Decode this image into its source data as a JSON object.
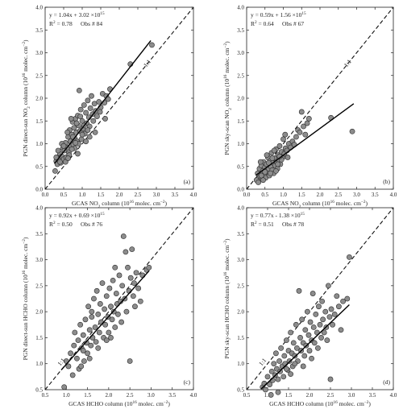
{
  "chart_data": [
    {
      "type": "scatter",
      "panel_label": "(a)",
      "xlabel": "GCAS NO₂ column (10¹⁶ molec. cm⁻²)",
      "ylabel": "PGN direct-sun NO₂ column (10¹⁶ molec. cm⁻²)",
      "xlim": [
        0.0,
        4.0
      ],
      "ylim": [
        0.0,
        4.0
      ],
      "xticks": [
        0.0,
        0.5,
        1.0,
        1.5,
        2.0,
        2.5,
        3.0,
        3.5,
        4.0
      ],
      "yticks": [
        0.0,
        0.5,
        1.0,
        1.5,
        2.0,
        2.5,
        3.0,
        3.5,
        4.0
      ],
      "tick_format": "0.0",
      "equation": "y = 1.04x + 3.02 ×10¹⁵",
      "r2_text": "R² = 0.78",
      "obs_text": "Obs # 84",
      "fit": {
        "slope": 1.04,
        "intercept": 0.302,
        "x_range": [
          0.25,
          2.85
        ]
      },
      "one_to_one": {
        "label": "1:1",
        "x_range": [
          0.0,
          4.0
        ]
      },
      "points": [
        [
          0.27,
          0.4
        ],
        [
          0.3,
          0.62
        ],
        [
          0.33,
          0.55
        ],
        [
          0.35,
          0.7
        ],
        [
          0.38,
          0.64
        ],
        [
          0.4,
          0.78
        ],
        [
          0.42,
          0.58
        ],
        [
          0.45,
          0.72
        ],
        [
          0.48,
          0.9
        ],
        [
          0.5,
          0.66
        ],
        [
          0.52,
          0.85
        ],
        [
          0.55,
          1.02
        ],
        [
          0.57,
          0.7
        ],
        [
          0.6,
          0.92
        ],
        [
          0.62,
          1.15
        ],
        [
          0.64,
          0.8
        ],
        [
          0.66,
          1.3
        ],
        [
          0.68,
          1.05
        ],
        [
          0.7,
          0.95
        ],
        [
          0.72,
          1.2
        ],
        [
          0.74,
          1.48
        ],
        [
          0.76,
          0.98
        ],
        [
          0.78,
          1.35
        ],
        [
          0.8,
          1.12
        ],
        [
          0.82,
          1.55
        ],
        [
          0.84,
          1.25
        ],
        [
          0.86,
          1.05
        ],
        [
          0.88,
          1.62
        ],
        [
          0.9,
          1.4
        ],
        [
          0.92,
          2.17
        ],
        [
          0.94,
          1.28
        ],
        [
          0.96,
          1.75
        ],
        [
          0.98,
          1.1
        ],
        [
          1.0,
          1.5
        ],
        [
          1.02,
          1.33
        ],
        [
          1.05,
          1.85
        ],
        [
          1.07,
          1.22
        ],
        [
          1.1,
          1.68
        ],
        [
          1.12,
          1.45
        ],
        [
          1.15,
          1.95
        ],
        [
          1.18,
          1.58
        ],
        [
          1.2,
          1.38
        ],
        [
          1.22,
          1.78
        ],
        [
          1.25,
          2.05
        ],
        [
          1.28,
          1.65
        ],
        [
          1.3,
          1.5
        ],
        [
          1.33,
          1.88
        ],
        [
          1.36,
          1.72
        ],
        [
          1.4,
          1.6
        ],
        [
          1.45,
          1.92
        ],
        [
          1.5,
          1.8
        ],
        [
          1.55,
          2.1
        ],
        [
          1.6,
          1.9
        ],
        [
          1.65,
          2.05
        ],
        [
          1.7,
          1.98
        ],
        [
          1.75,
          2.2
        ],
        [
          0.35,
          0.85
        ],
        [
          0.45,
          1.0
        ],
        [
          0.55,
          0.6
        ],
        [
          0.6,
          1.25
        ],
        [
          0.65,
          0.75
        ],
        [
          0.7,
          1.55
        ],
        [
          0.75,
          1.15
        ],
        [
          0.8,
          0.9
        ],
        [
          0.85,
          1.45
        ],
        [
          0.9,
          1.0
        ],
        [
          0.95,
          1.6
        ],
        [
          1.0,
          1.2
        ],
        [
          1.05,
          1.4
        ],
        [
          1.1,
          1.05
        ],
        [
          1.15,
          1.3
        ],
        [
          1.2,
          1.15
        ],
        [
          0.5,
          0.95
        ],
        [
          0.4,
          0.6
        ],
        [
          0.3,
          0.7
        ],
        [
          0.62,
          0.68
        ],
        [
          0.72,
          0.88
        ],
        [
          0.82,
          1.02
        ],
        [
          1.35,
          1.25
        ],
        [
          1.48,
          1.7
        ],
        [
          1.62,
          1.55
        ],
        [
          2.3,
          2.75
        ],
        [
          2.88,
          3.17
        ],
        [
          0.88,
          0.78
        ]
      ]
    },
    {
      "type": "scatter",
      "panel_label": "(b)",
      "xlabel": "GCAS NO₂ column (10¹⁶ molec. cm⁻²)",
      "ylabel": "PGN sky-scan NO₂ column (10¹⁶ molec. cm⁻²)",
      "xlim": [
        0.0,
        4.0
      ],
      "ylim": [
        0.0,
        4.0
      ],
      "xticks": [
        0.0,
        0.5,
        1.0,
        1.5,
        2.0,
        2.5,
        3.0,
        3.5,
        4.0
      ],
      "yticks": [
        0.0,
        0.5,
        1.0,
        1.5,
        2.0,
        2.5,
        3.0,
        3.5,
        4.0
      ],
      "tick_format": "0.0",
      "equation": "y = 0.59x + 1.56 ×10¹⁵",
      "r2_text": "R² = 0.64",
      "obs_text": "Obs # 67",
      "fit": {
        "slope": 0.59,
        "intercept": 0.156,
        "x_range": [
          0.25,
          2.92
        ]
      },
      "one_to_one": {
        "label": "1:1",
        "x_range": [
          0.0,
          4.0
        ]
      },
      "points": [
        [
          0.27,
          0.2
        ],
        [
          0.3,
          0.35
        ],
        [
          0.32,
          0.15
        ],
        [
          0.35,
          0.45
        ],
        [
          0.37,
          0.28
        ],
        [
          0.4,
          0.52
        ],
        [
          0.42,
          0.22
        ],
        [
          0.44,
          0.4
        ],
        [
          0.46,
          0.6
        ],
        [
          0.48,
          0.32
        ],
        [
          0.5,
          0.48
        ],
        [
          0.52,
          0.25
        ],
        [
          0.54,
          0.55
        ],
        [
          0.56,
          0.38
        ],
        [
          0.58,
          0.7
        ],
        [
          0.6,
          0.45
        ],
        [
          0.62,
          0.3
        ],
        [
          0.64,
          0.62
        ],
        [
          0.66,
          0.5
        ],
        [
          0.68,
          0.8
        ],
        [
          0.7,
          0.42
        ],
        [
          0.72,
          0.58
        ],
        [
          0.74,
          0.35
        ],
        [
          0.76,
          0.68
        ],
        [
          0.78,
          0.52
        ],
        [
          0.8,
          0.88
        ],
        [
          0.82,
          0.6
        ],
        [
          0.84,
          0.45
        ],
        [
          0.86,
          0.75
        ],
        [
          0.88,
          0.65
        ],
        [
          0.9,
          0.95
        ],
        [
          0.92,
          0.55
        ],
        [
          0.95,
          0.82
        ],
        [
          0.98,
          0.7
        ],
        [
          1.0,
          1.1
        ],
        [
          1.03,
          0.78
        ],
        [
          1.06,
          0.9
        ],
        [
          1.1,
          0.85
        ],
        [
          1.15,
          1.0
        ],
        [
          1.2,
          0.92
        ],
        [
          1.25,
          1.05
        ],
        [
          1.3,
          0.98
        ],
        [
          1.35,
          1.15
        ],
        [
          1.4,
          1.3
        ],
        [
          1.45,
          1.25
        ],
        [
          1.5,
          1.7
        ],
        [
          1.55,
          1.38
        ],
        [
          1.6,
          1.2
        ],
        [
          1.65,
          1.45
        ],
        [
          1.7,
          1.55
        ],
        [
          0.38,
          0.6
        ],
        [
          0.45,
          0.2
        ],
        [
          0.55,
          0.75
        ],
        [
          0.65,
          0.35
        ],
        [
          0.75,
          0.85
        ],
        [
          0.85,
          0.55
        ],
        [
          0.95,
          0.65
        ],
        [
          1.05,
          1.2
        ],
        [
          0.5,
          0.38
        ],
        [
          0.6,
          0.58
        ],
        [
          0.7,
          0.68
        ],
        [
          0.8,
          0.4
        ],
        [
          0.9,
          0.72
        ],
        [
          1.12,
          0.7
        ],
        [
          2.3,
          1.57
        ],
        [
          2.88,
          1.27
        ],
        [
          0.4,
          0.3
        ]
      ]
    },
    {
      "type": "scatter",
      "panel_label": "(c)",
      "xlabel": "GCAS HCHO column (10¹⁶ molec. cm⁻²)",
      "ylabel": "PGN direct-sun HCHO column (10¹⁶ molec. cm⁻²)",
      "xlim": [
        0.5,
        4.0
      ],
      "ylim": [
        0.5,
        4.0
      ],
      "xticks": [
        0.5,
        1.0,
        1.5,
        2.0,
        2.5,
        3.0,
        3.5,
        4.0
      ],
      "yticks": [
        0.5,
        1.0,
        1.5,
        2.0,
        2.5,
        3.0,
        3.5,
        4.0
      ],
      "tick_format": "0.0",
      "equation": "y = 0.92x + 0.69 ×10¹⁵",
      "r2_text": "R² = 0.50",
      "obs_text": "Obs # 76",
      "fit": {
        "slope": 0.92,
        "intercept": 0.069,
        "x_range": [
          0.88,
          2.95
        ]
      },
      "one_to_one": {
        "label": "1:1",
        "x_range": [
          0.5,
          4.0
        ]
      },
      "points": [
        [
          0.95,
          0.55
        ],
        [
          1.0,
          1.05
        ],
        [
          1.05,
          0.95
        ],
        [
          1.1,
          1.2
        ],
        [
          1.15,
          0.78
        ],
        [
          1.18,
          1.35
        ],
        [
          1.2,
          1.6
        ],
        [
          1.25,
          1.1
        ],
        [
          1.28,
          1.45
        ],
        [
          1.3,
          0.9
        ],
        [
          1.33,
          1.75
        ],
        [
          1.36,
          1.3
        ],
        [
          1.4,
          1.55
        ],
        [
          1.42,
          1.05
        ],
        [
          1.45,
          1.85
        ],
        [
          1.48,
          1.4
        ],
        [
          1.5,
          1.2
        ],
        [
          1.52,
          2.1
        ],
        [
          1.55,
          1.65
        ],
        [
          1.58,
          1.35
        ],
        [
          1.6,
          1.9
        ],
        [
          1.62,
          1.5
        ],
        [
          1.65,
          2.25
        ],
        [
          1.68,
          1.7
        ],
        [
          1.7,
          1.42
        ],
        [
          1.72,
          2.4
        ],
        [
          1.75,
          1.95
        ],
        [
          1.78,
          1.6
        ],
        [
          1.8,
          2.15
        ],
        [
          1.82,
          1.8
        ],
        [
          1.85,
          2.55
        ],
        [
          1.88,
          1.5
        ],
        [
          1.9,
          2.05
        ],
        [
          1.92,
          1.75
        ],
        [
          1.95,
          2.3
        ],
        [
          1.98,
          1.9
        ],
        [
          2.0,
          1.6
        ],
        [
          2.02,
          2.45
        ],
        [
          2.05,
          2.1
        ],
        [
          2.08,
          1.85
        ],
        [
          2.1,
          2.6
        ],
        [
          2.12,
          2.0
        ],
        [
          2.15,
          1.7
        ],
        [
          2.18,
          2.35
        ],
        [
          2.2,
          2.15
        ],
        [
          2.22,
          1.95
        ],
        [
          2.25,
          2.7
        ],
        [
          2.28,
          2.2
        ],
        [
          2.3,
          1.8
        ],
        [
          2.32,
          2.5
        ],
        [
          2.35,
          3.45
        ],
        [
          2.38,
          2.25
        ],
        [
          2.4,
          3.15
        ],
        [
          2.42,
          2.0
        ],
        [
          2.45,
          2.85
        ],
        [
          2.48,
          2.4
        ],
        [
          2.5,
          1.05
        ],
        [
          2.52,
          2.65
        ],
        [
          2.55,
          3.2
        ],
        [
          2.58,
          2.3
        ],
        [
          2.6,
          2.55
        ],
        [
          2.62,
          2.1
        ],
        [
          2.65,
          2.75
        ],
        [
          2.7,
          2.45
        ],
        [
          2.75,
          2.2
        ],
        [
          2.8,
          2.7
        ],
        [
          2.9,
          2.8
        ],
        [
          2.95,
          2.85
        ],
        [
          1.35,
          0.95
        ],
        [
          1.55,
          1.1
        ],
        [
          1.75,
          1.3
        ],
        [
          1.95,
          1.45
        ],
        [
          2.15,
          2.85
        ],
        [
          1.6,
          2.0
        ],
        [
          1.4,
          1.25
        ],
        [
          2.05,
          1.5
        ]
      ]
    },
    {
      "type": "scatter",
      "panel_label": "(d)",
      "xlabel": "GCAS HCHO column (10¹⁶ molec. cm⁻²)",
      "ylabel": "PGN sky-scan HCHO column (10¹⁶ molec. cm⁻²)",
      "xlim": [
        0.5,
        4.0
      ],
      "ylim": [
        0.5,
        4.0
      ],
      "xticks": [
        0.5,
        1.0,
        1.5,
        2.0,
        2.5,
        3.0,
        3.5,
        4.0
      ],
      "yticks": [
        0.5,
        1.0,
        1.5,
        2.0,
        2.5,
        3.0,
        3.5,
        4.0
      ],
      "tick_format": "0.0",
      "equation": "y = 0.77x - 1.38 ×10¹⁵",
      "r2_text": "R² = 0.51",
      "obs_text": "Obs # 78",
      "fit": {
        "slope": 0.77,
        "intercept": -0.138,
        "x_range": [
          0.85,
          2.95
        ]
      },
      "one_to_one": {
        "label": "1:1",
        "x_range": [
          0.5,
          4.0
        ]
      },
      "points": [
        [
          0.88,
          0.55
        ],
        [
          0.92,
          0.62
        ],
        [
          0.95,
          0.5
        ],
        [
          1.0,
          0.75
        ],
        [
          1.05,
          0.6
        ],
        [
          1.1,
          0.85
        ],
        [
          1.12,
          0.68
        ],
        [
          1.15,
          1.0
        ],
        [
          1.18,
          0.78
        ],
        [
          1.2,
          1.2
        ],
        [
          1.22,
          0.9
        ],
        [
          1.25,
          0.7
        ],
        [
          1.28,
          1.05
        ],
        [
          1.3,
          0.85
        ],
        [
          1.32,
          1.3
        ],
        [
          1.35,
          0.95
        ],
        [
          1.38,
          0.75
        ],
        [
          1.4,
          1.15
        ],
        [
          1.42,
          1.0
        ],
        [
          1.45,
          1.45
        ],
        [
          1.48,
          0.88
        ],
        [
          1.5,
          1.25
        ],
        [
          1.52,
          1.05
        ],
        [
          1.55,
          1.6
        ],
        [
          1.58,
          1.2
        ],
        [
          1.6,
          0.95
        ],
        [
          1.62,
          1.4
        ],
        [
          1.65,
          1.15
        ],
        [
          1.68,
          1.75
        ],
        [
          1.7,
          1.3
        ],
        [
          1.72,
          1.05
        ],
        [
          1.75,
          2.4
        ],
        [
          1.78,
          1.5
        ],
        [
          1.8,
          1.25
        ],
        [
          1.82,
          1.85
        ],
        [
          1.85,
          1.4
        ],
        [
          1.88,
          1.15
        ],
        [
          1.9,
          1.65
        ],
        [
          1.92,
          1.35
        ],
        [
          1.95,
          2.0
        ],
        [
          1.98,
          1.55
        ],
        [
          2.0,
          1.25
        ],
        [
          2.02,
          1.8
        ],
        [
          2.05,
          1.45
        ],
        [
          2.08,
          2.35
        ],
        [
          2.1,
          1.7
        ],
        [
          2.12,
          1.4
        ],
        [
          2.15,
          1.95
        ],
        [
          2.18,
          1.6
        ],
        [
          2.2,
          1.3
        ],
        [
          2.22,
          2.1
        ],
        [
          2.25,
          1.75
        ],
        [
          2.28,
          1.5
        ],
        [
          2.3,
          2.2
        ],
        [
          2.32,
          1.85
        ],
        [
          2.35,
          1.6
        ],
        [
          2.38,
          2.0
        ],
        [
          2.4,
          1.7
        ],
        [
          2.42,
          1.45
        ],
        [
          2.45,
          2.5
        ],
        [
          2.48,
          1.9
        ],
        [
          2.5,
          0.7
        ],
        [
          2.52,
          2.05
        ],
        [
          2.55,
          1.75
        ],
        [
          2.6,
          1.95
        ],
        [
          2.65,
          2.3
        ],
        [
          2.7,
          2.1
        ],
        [
          2.75,
          1.65
        ],
        [
          2.8,
          2.2
        ],
        [
          2.9,
          2.25
        ],
        [
          2.95,
          3.05
        ],
        [
          1.08,
          0.4
        ],
        [
          1.25,
          0.45
        ],
        [
          1.45,
          0.9
        ],
        [
          1.65,
          1.0
        ],
        [
          1.85,
          0.95
        ],
        [
          2.05,
          1.1
        ],
        [
          1.55,
          0.8
        ]
      ]
    }
  ]
}
